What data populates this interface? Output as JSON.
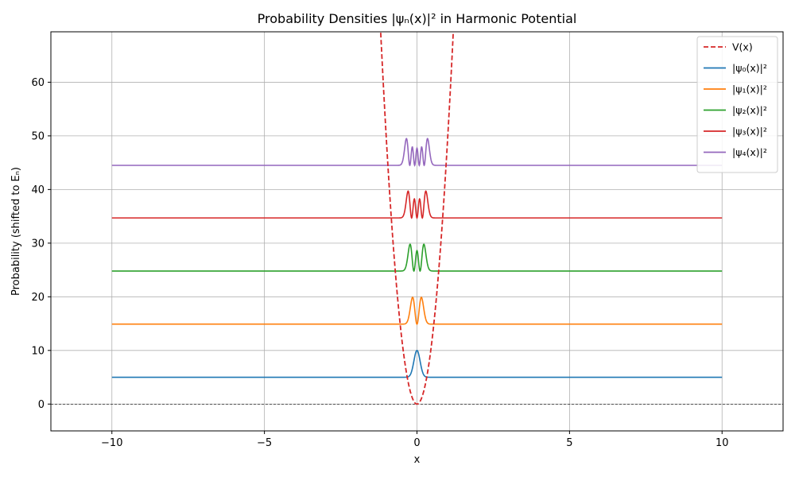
{
  "chart_data": {
    "type": "line",
    "title": "Probability Densities |ψₙ(x)|² in Harmonic Potential",
    "xlabel": "x",
    "ylabel": "Probability (shifted to Eₙ)",
    "xlim": [
      -12,
      12
    ],
    "ylim": [
      -5,
      69.4
    ],
    "x_ticks": [
      -10,
      -5,
      0,
      5,
      10
    ],
    "y_ticks": [
      0,
      10,
      20,
      30,
      40,
      50,
      60
    ],
    "grid": true,
    "legend_position": "top-right",
    "x_range": [
      -10,
      10
    ],
    "potential": {
      "name": "V(x)",
      "color": "#d62728",
      "dash": "dashed",
      "formula": "V(x) = 49 x^2",
      "x_range": [
        -1.2,
        1.2
      ]
    },
    "series": [
      {
        "name": "|ψ₀(x)|²",
        "n": 0,
        "energy": 5.0,
        "peak_height": 5.0,
        "color": "#1f77b4"
      },
      {
        "name": "|ψ₁(x)|²",
        "n": 1,
        "energy": 14.9,
        "peak_height": 5.0,
        "color": "#ff7f0e"
      },
      {
        "name": "|ψ₂(x)|²",
        "n": 2,
        "energy": 24.8,
        "peak_height": 5.0,
        "color": "#2ca02c"
      },
      {
        "name": "|ψ₃(x)|²",
        "n": 3,
        "energy": 34.7,
        "peak_height": 5.0,
        "color": "#d62728"
      },
      {
        "name": "|ψ₄(x)|²",
        "n": 4,
        "energy": 44.5,
        "peak_height": 5.0,
        "color": "#9467bd"
      }
    ],
    "zero_line": {
      "y": 0,
      "color": "#000000",
      "dash": "dashed"
    }
  }
}
